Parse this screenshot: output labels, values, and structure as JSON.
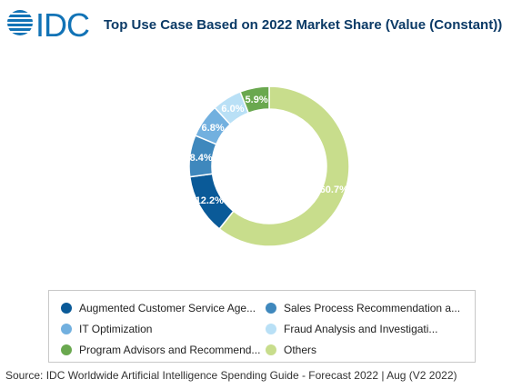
{
  "header": {
    "logo_text": "IDC",
    "title": "Top Use Case Based on 2022 Market Share (Value (Constant))"
  },
  "colors": {
    "logo_blue": "#1273b6",
    "title": "#0b3a66"
  },
  "chart_data": {
    "type": "pie",
    "donut": true,
    "title": "Top Use Case Based on 2022 Market Share (Value (Constant))",
    "legend_position": "bottom",
    "slices": [
      {
        "label": "Augmented Customer Service Age...",
        "value": 12.2,
        "value_label": "12.2%",
        "color": "#0a5a98"
      },
      {
        "label": "Sales Process Recommendation a...",
        "value": 8.4,
        "value_label": "8.4%",
        "color": "#3f88bd"
      },
      {
        "label": "IT Optimization",
        "value": 6.8,
        "value_label": "6.8%",
        "color": "#72b0df"
      },
      {
        "label": "Fraud Analysis and Investigati...",
        "value": 6.0,
        "value_label": "6.0%",
        "color": "#b9e0f6"
      },
      {
        "label": "Program Advisors and Recommend...",
        "value": 5.9,
        "value_label": "5.9%",
        "color": "#6aa84f"
      },
      {
        "label": "Others",
        "value": 60.7,
        "value_label": "60.7%",
        "color": "#c8dd8c"
      }
    ]
  },
  "footer": {
    "source": "Source: IDC Worldwide Artificial Intelligence Spending Guide - Forecast 2022 | Aug (V2 2022)"
  }
}
